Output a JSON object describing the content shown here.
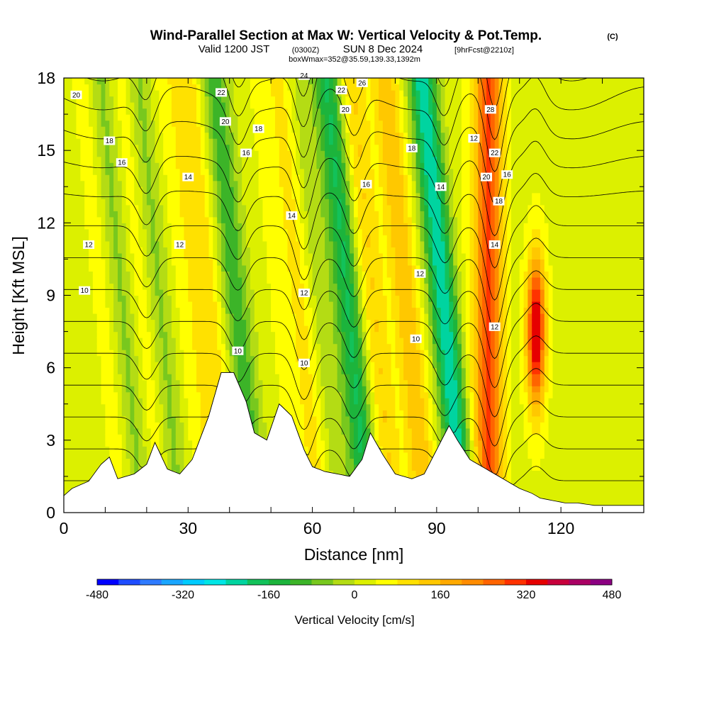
{
  "header": {
    "title_main": "Wind-Parallel Section at Max W: Vertical Velocity & Pot.Temp.",
    "title_unit": "(C)",
    "valid_prefix": "Valid 1200 JST",
    "valid_utc": "(0300Z)",
    "valid_date": "SUN 8 Dec 2024",
    "fcst": "[9hrFcst@2210z]",
    "box_info": "boxWmax=352@35.59,139.33,1392m"
  },
  "colors": {
    "bins": [
      "#0000ff",
      "#1f4dff",
      "#2f7bff",
      "#1aa6ff",
      "#00ccff",
      "#00e6e6",
      "#00d4a0",
      "#12c25a",
      "#1cb43c",
      "#3cb428",
      "#78c81e",
      "#b4dc14",
      "#dcf000",
      "#ffff00",
      "#ffe100",
      "#ffc800",
      "#ffaa00",
      "#ff8c00",
      "#ff6400",
      "#ff3200",
      "#e60000",
      "#c8003c",
      "#aa0064",
      "#8c0082",
      "#640096"
    ],
    "terrain": "#ffffff",
    "contour": "#000000"
  },
  "chart_data": {
    "type": "heatmap",
    "title": "Wind-Parallel Section at Max W: Vertical Velocity & Pot.Temp.",
    "xlabel": "Distance [nm]",
    "ylabel": "Height [Kft MSL]",
    "xlim": [
      0,
      140
    ],
    "ylim": [
      0,
      18
    ],
    "x_ticks": [
      0,
      30,
      60,
      90,
      120
    ],
    "x_tick_labels": [
      "0",
      "30",
      "60",
      "90",
      "120"
    ],
    "y_ticks": [
      0,
      3,
      6,
      9,
      12,
      15,
      18
    ],
    "y_tick_labels": [
      "0",
      "3",
      "6",
      "9",
      "12",
      "15",
      "18"
    ],
    "colorbar": {
      "label": "Vertical Velocity [cm/s]",
      "min": -480,
      "max": 480,
      "step": 40,
      "tick_values": [
        -480,
        -320,
        -160,
        0,
        160,
        320,
        480
      ],
      "tick_labels": [
        "-480",
        "-320",
        "-160",
        "0",
        "160",
        "320",
        "480"
      ]
    },
    "vertical_velocity_features": [
      {
        "x": 11,
        "w": 50
      },
      {
        "x": 14,
        "w": -90
      },
      {
        "x": 20,
        "w": 60
      },
      {
        "x": 23,
        "w": -90
      },
      {
        "x": 30,
        "w": 40
      },
      {
        "x": 35,
        "w": 90
      },
      {
        "x": 42,
        "w": -130
      },
      {
        "x": 53,
        "w": 30
      },
      {
        "x": 58,
        "w": 70
      },
      {
        "x": 62,
        "w": -60
      },
      {
        "x": 69,
        "w": -190
      },
      {
        "x": 75,
        "w": 100
      },
      {
        "x": 83,
        "w": 130
      },
      {
        "x": 92,
        "w": -260
      },
      {
        "x": 100,
        "w": 60
      },
      {
        "x": 103,
        "w": 230
      },
      {
        "x": 114,
        "w": 352
      }
    ],
    "terrain_profile": {
      "x": [
        0,
        2,
        6,
        9,
        11,
        13,
        17,
        20,
        22,
        25,
        28,
        31,
        35,
        38,
        41,
        44,
        46,
        49,
        52,
        55,
        58,
        60,
        63,
        66,
        69,
        72,
        74,
        77,
        80,
        84,
        87,
        90,
        93,
        95,
        98,
        101,
        104,
        107,
        110,
        113,
        115,
        118,
        121,
        124,
        128,
        132,
        136,
        140
      ],
      "height": [
        0.7,
        1.0,
        1.3,
        2.0,
        2.3,
        1.4,
        1.6,
        2.0,
        2.9,
        1.8,
        1.6,
        2.2,
        4.0,
        5.8,
        5.8,
        4.6,
        3.3,
        3.0,
        4.5,
        4.0,
        2.6,
        1.9,
        1.7,
        1.6,
        1.5,
        2.2,
        3.3,
        2.4,
        1.6,
        1.4,
        1.6,
        2.6,
        3.6,
        3.0,
        2.2,
        1.9,
        1.6,
        1.3,
        1.0,
        0.8,
        0.6,
        0.5,
        0.4,
        0.4,
        0.3,
        0.3,
        0.3,
        0.3
      ]
    },
    "potential_temperature_contours": {
      "unit": "C",
      "interval": 1,
      "labeled_levels": [
        10,
        12,
        14,
        16,
        18,
        20,
        22,
        24,
        26,
        28
      ]
    },
    "contour_labels": [
      {
        "text": "20",
        "x": 3,
        "y": 17.3
      },
      {
        "text": "18",
        "x": 11,
        "y": 15.4
      },
      {
        "text": "16",
        "x": 14,
        "y": 14.5
      },
      {
        "text": "14",
        "x": 30,
        "y": 13.9
      },
      {
        "text": "12",
        "x": 6,
        "y": 11.1
      },
      {
        "text": "12",
        "x": 28,
        "y": 11.1
      },
      {
        "text": "10",
        "x": 5,
        "y": 9.2
      },
      {
        "text": "24",
        "x": 58,
        "y": 18.1
      },
      {
        "text": "22",
        "x": 38,
        "y": 17.4
      },
      {
        "text": "20",
        "x": 39,
        "y": 16.2
      },
      {
        "text": "18",
        "x": 47,
        "y": 15.9
      },
      {
        "text": "16",
        "x": 44,
        "y": 14.9
      },
      {
        "text": "26",
        "x": 72,
        "y": 17.8
      },
      {
        "text": "22",
        "x": 67,
        "y": 17.5
      },
      {
        "text": "20",
        "x": 68,
        "y": 16.7
      },
      {
        "text": "16",
        "x": 73,
        "y": 13.6
      },
      {
        "text": "14",
        "x": 55,
        "y": 12.3
      },
      {
        "text": "12",
        "x": 58,
        "y": 9.1
      },
      {
        "text": "10",
        "x": 42,
        "y": 6.7
      },
      {
        "text": "10",
        "x": 58,
        "y": 6.2
      },
      {
        "text": "18",
        "x": 84,
        "y": 15.1
      },
      {
        "text": "14",
        "x": 91,
        "y": 13.5
      },
      {
        "text": "12",
        "x": 86,
        "y": 9.9
      },
      {
        "text": "10",
        "x": 85,
        "y": 7.2
      },
      {
        "text": "28",
        "x": 103,
        "y": 16.7
      },
      {
        "text": "12",
        "x": 99,
        "y": 15.5
      },
      {
        "text": "22",
        "x": 104,
        "y": 14.9
      },
      {
        "text": "20",
        "x": 102,
        "y": 13.9
      },
      {
        "text": "16",
        "x": 107,
        "y": 14.0
      },
      {
        "text": "18",
        "x": 105,
        "y": 12.9
      },
      {
        "text": "14",
        "x": 104,
        "y": 11.1
      },
      {
        "text": "12",
        "x": 104,
        "y": 7.7
      }
    ]
  }
}
